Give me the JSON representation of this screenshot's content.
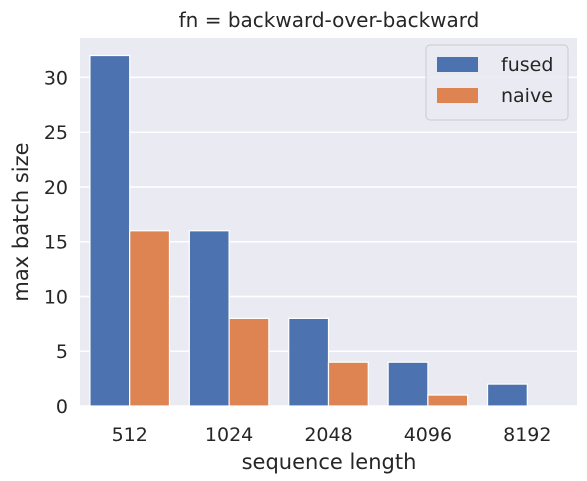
{
  "chart_data": {
    "type": "bar",
    "title": "fn = backward-over-backward",
    "xlabel": "sequence length",
    "ylabel": "max batch size",
    "categories": [
      "512",
      "1024",
      "2048",
      "4096",
      "8192"
    ],
    "series": [
      {
        "name": "fused",
        "values": [
          32,
          16,
          8,
          4,
          2
        ],
        "color": "#4c72b0"
      },
      {
        "name": "naive",
        "values": [
          16,
          8,
          4,
          1,
          0
        ],
        "color": "#dd8452"
      }
    ],
    "ylim": [
      0,
      33.6
    ],
    "yticks": [
      0,
      5,
      10,
      15,
      20,
      25,
      30
    ],
    "grid": true,
    "legend_position": "top-right",
    "background": "#eaeaf2"
  }
}
